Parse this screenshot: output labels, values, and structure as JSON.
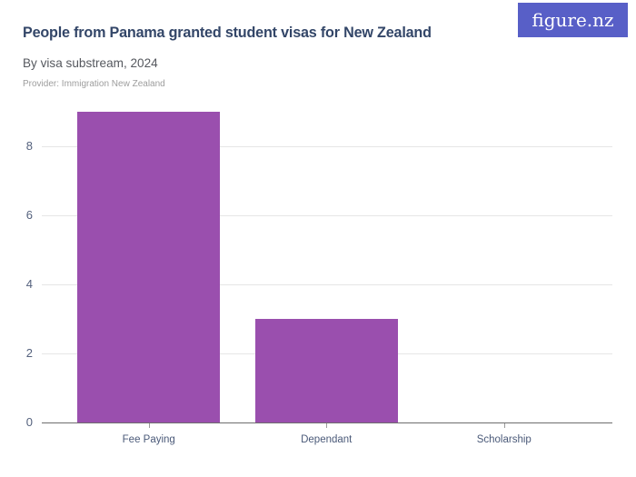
{
  "header": {
    "title": "People from Panama granted student visas for New Zealand",
    "subtitle": "By visa substream, 2024",
    "provider": "Provider: Immigration New Zealand",
    "logo_text": "figure.nz"
  },
  "colors": {
    "title_text": "#334668",
    "subtitle_text": "#55585e",
    "provider_text": "#9d9d9d",
    "logo_bg": "#585fc7",
    "logo_text": "#ffffff",
    "bar": "#9a4fae",
    "gridline": "#e6e6e6",
    "axis_line": "#6e6e6e",
    "tick": "#9a9a9a",
    "y_label": "#54617d",
    "x_label": "#4b5a79"
  },
  "chart_data": {
    "type": "bar",
    "title": "People from Panama granted student visas for New Zealand",
    "subtitle": "By visa substream, 2024",
    "source": "Provider: Immigration New Zealand",
    "categories": [
      "Fee Paying",
      "Dependant",
      "Scholarship"
    ],
    "values": [
      9,
      3,
      0
    ],
    "xlabel": "",
    "ylabel": "",
    "ylim": [
      0,
      9
    ],
    "yticks": [
      0,
      2,
      4,
      6,
      8
    ],
    "grid": "horizontal",
    "legend": "none"
  }
}
